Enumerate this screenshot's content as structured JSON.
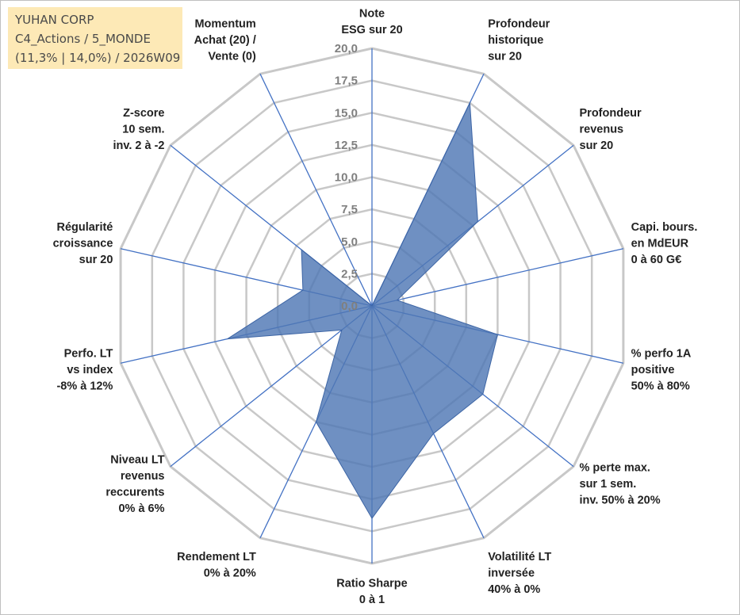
{
  "header": {
    "company": "YUHAN CORP",
    "portfolio": "C4_Actions / 5_MONDE",
    "stats": "(11,3% | 14,0%) / 2026W09"
  },
  "colors": {
    "grid": "#c8c8c8",
    "spoke": "#4472c4",
    "fill": "#4f78b5",
    "info_bg": "#fde9b6"
  },
  "chart_data": {
    "type": "radar",
    "title": "",
    "rmin": 0,
    "rmax": 20,
    "tick_step": 2.5,
    "tick_labels": [
      "0,0",
      "2,5",
      "5,0",
      "7,5",
      "10,0",
      "12,5",
      "15,0",
      "17,5",
      "20,0"
    ],
    "axes": [
      [
        "Note",
        "ESG sur 20"
      ],
      [
        "Profondeur",
        "historique",
        "sur 20"
      ],
      [
        "Profondeur",
        "revenus",
        "sur 20"
      ],
      [
        "Capi. bours.",
        "en MdEUR",
        "0 à 60 G€"
      ],
      [
        "% perfo 1A",
        "positive",
        "50% à 80%"
      ],
      [
        "% perte max.",
        "sur 1 sem.",
        "inv. 50% à 20%"
      ],
      [
        "Volatilité LT",
        "inversée",
        "40% à 0%"
      ],
      [
        "Ratio Sharpe",
        "0 à 1"
      ],
      [
        "Rendement LT",
        "0% à 20%"
      ],
      [
        "Niveau LT",
        "revenus",
        "reccurents",
        "0% à 6%"
      ],
      [
        "Perfo. LT",
        "vs index",
        "-8% à 12%"
      ],
      [
        "Régularité",
        "croissance",
        "sur 20"
      ],
      [
        "Z-score",
        "10 sem.",
        "inv. 2 à -2"
      ],
      [
        "Momentum",
        "Achat (20) /",
        "Vente (0)"
      ]
    ],
    "values": [
      0,
      17.5,
      10.5,
      2.0,
      10.0,
      11.0,
      11.0,
      16.5,
      10.0,
      3.0,
      11.5,
      5.5,
      7.0,
      0
    ]
  }
}
